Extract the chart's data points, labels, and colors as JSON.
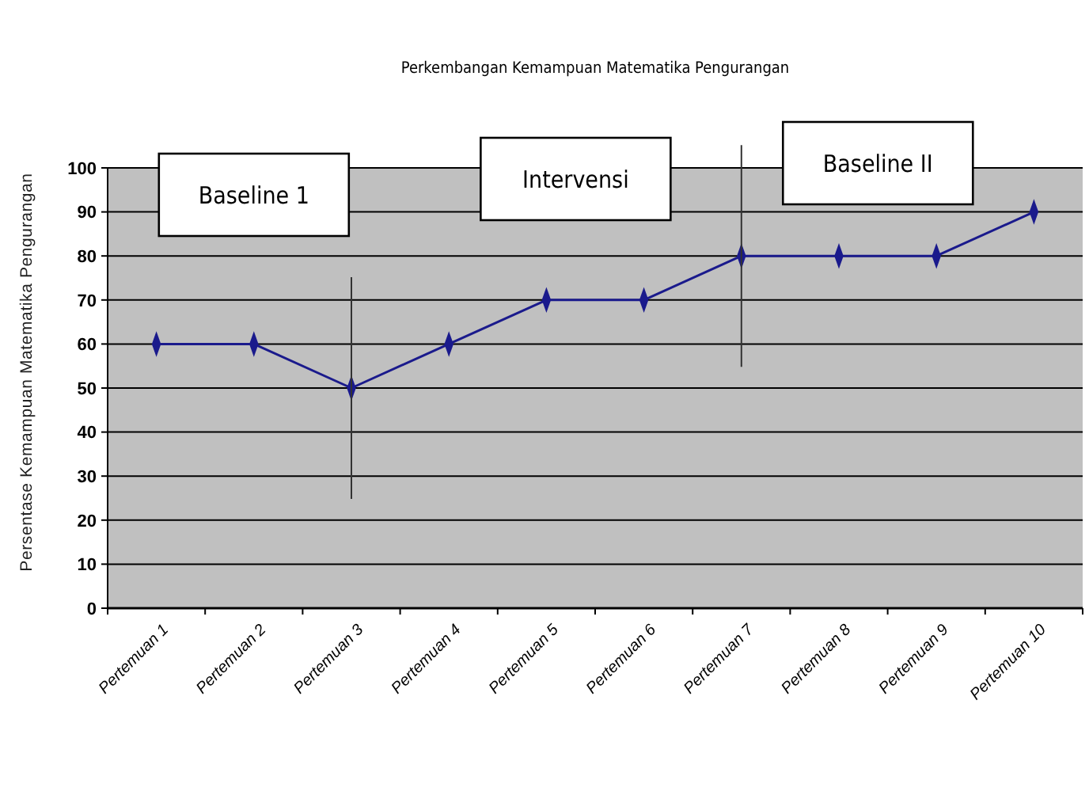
{
  "chart_data": {
    "type": "line",
    "title": "Perkembangan Kemampuan Matematika Pengurangan",
    "ylabel": "Persentase Kemampuan Matematika Pengurangan",
    "categories": [
      "Pertemuan 1",
      "Pertemuan 2",
      "Pertemuan 3",
      "Pertemuan 4",
      "Pertemuan 5",
      "Pertemuan 6",
      "Pertemuan 7",
      "Pertemuan 8",
      "Pertemuan 9",
      "Pertemuan 10"
    ],
    "series": [
      {
        "color": "#1a1a8c",
        "values": [
          60,
          60,
          50,
          60,
          70,
          70,
          80,
          80,
          80,
          90
        ]
      }
    ],
    "ylim": [
      0,
      100
    ],
    "yticks": [
      0,
      10,
      20,
      30,
      40,
      50,
      60,
      70,
      80,
      90,
      100
    ],
    "grid": "y",
    "marker": "diamond",
    "line_style": "solid",
    "ref_lines": [
      {
        "axis": "x",
        "value": "Pertemuan 3",
        "color": "#333333"
      },
      {
        "axis": "x",
        "value": "Pertemuan 7",
        "color": "#333333"
      }
    ],
    "annotations": [
      "Baseline 1",
      "Intervensi",
      "Baseline II"
    ]
  }
}
